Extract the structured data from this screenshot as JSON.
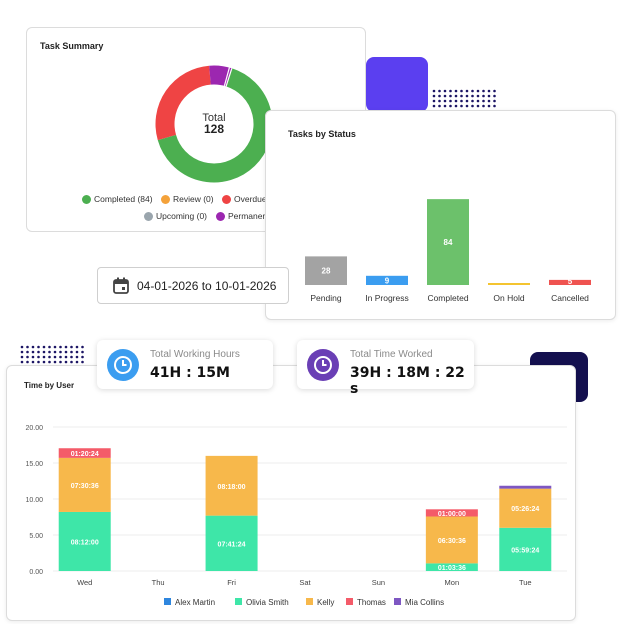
{
  "colors": {
    "completed": "#4caf50",
    "review": "#f4a23a",
    "overdue": "#ef4444",
    "upcoming": "#9aa5ad",
    "permanent": "#9c27b0",
    "purple_square": "#5b3ff0",
    "navy_square": "#14104f",
    "dots": "#1b1464"
  },
  "task_summary": {
    "title": "Task Summary",
    "center_label": "Total",
    "center_value": "128",
    "legend": [
      {
        "label": "Completed (84)",
        "color": "#4caf50"
      },
      {
        "label": "Review (0)",
        "color": "#f4a23a"
      },
      {
        "label": "Overdue",
        "color": "#ef4444"
      },
      {
        "label": "Upcoming (0)",
        "color": "#9aa5ad"
      },
      {
        "label": "Permanen",
        "color": "#9c27b0"
      }
    ]
  },
  "tasks_by_status": {
    "title": "Tasks by Status"
  },
  "date_range": {
    "icon": "calendar-icon",
    "text": "04-01-2026 to 10-01-2026"
  },
  "stats": {
    "working_hours": {
      "label": "Total Working Hours",
      "value": "41H : 15M",
      "icon": "clock-icon",
      "color": "#3b9df0"
    },
    "time_worked": {
      "label": "Total Time Worked",
      "value": "39H : 18M : 22 s",
      "icon": "clock-icon",
      "color": "#6a3fb5"
    }
  },
  "time_by_user": {
    "title": "Time by User"
  },
  "chart_data": [
    {
      "type": "pie",
      "donut": true,
      "labels": [
        "Completed",
        "Review",
        "Overdue",
        "Upcoming",
        "Permanent"
      ],
      "values": [
        84,
        0,
        36,
        0,
        8
      ],
      "colors": [
        "#4caf50",
        "#f4a23a",
        "#ef4444",
        "#9aa5ad",
        "#9c27b0"
      ]
    },
    {
      "type": "bar",
      "categories": [
        "Pending",
        "In Progress",
        "Completed",
        "On Hold",
        "Cancelled"
      ],
      "values": [
        28,
        9,
        84,
        0,
        5
      ],
      "value_labels": [
        "28",
        "9",
        "84",
        "",
        "5"
      ],
      "colors": [
        "#a3a3a3",
        "#3b9df0",
        "#6cc16b",
        "#f4c430",
        "#ef5350"
      ],
      "ylim": [
        0,
        90
      ]
    },
    {
      "type": "bar",
      "stacked": true,
      "categories": [
        "Wed",
        "Thu",
        "Fri",
        "Sat",
        "Sun",
        "Mon",
        "Tue"
      ],
      "ylim": [
        0,
        20
      ],
      "yticks": [
        "0.00",
        "5.00",
        "10.00",
        "15.00",
        "20.00"
      ],
      "series": [
        {
          "name": "Alex Martin",
          "color": "#2e86de",
          "values": [
            0,
            0,
            0,
            0,
            0,
            0,
            0
          ],
          "labels": [
            "",
            "",
            "",
            "",
            "",
            "",
            ""
          ]
        },
        {
          "name": "Olivia Smith",
          "color": "#3ee6a8",
          "values": [
            8.2,
            0,
            7.69,
            0,
            0,
            1.06,
            6.0
          ],
          "labels": [
            "08:12:00",
            "",
            "07:41:24",
            "",
            "",
            "01:03:36",
            "05:59:24"
          ]
        },
        {
          "name": "Kelly",
          "color": "#f7b84b",
          "values": [
            7.51,
            0,
            8.3,
            0,
            0,
            6.51,
            5.44
          ],
          "labels": [
            "07:30:36",
            "",
            "08:18:00",
            "",
            "",
            "06:30:36",
            "05:26:24"
          ]
        },
        {
          "name": "Thomas",
          "color": "#f45b69",
          "values": [
            1.34,
            0,
            0,
            0,
            0,
            1.0,
            0
          ],
          "labels": [
            "01:20:24",
            "",
            "",
            "",
            "",
            "01:00:00",
            ""
          ]
        },
        {
          "name": "Mia Collins",
          "color": "#7e57c2",
          "values": [
            0,
            0,
            0,
            0,
            0,
            0,
            0.4
          ],
          "labels": [
            "",
            "",
            "",
            "",
            "",
            "",
            ""
          ]
        }
      ]
    }
  ]
}
